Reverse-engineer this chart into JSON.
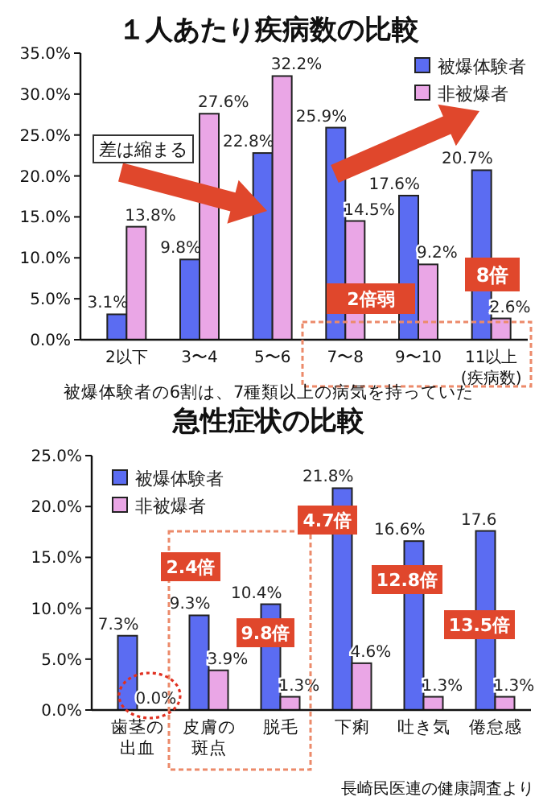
{
  "chart_data": [
    {
      "type": "bar",
      "title": "１人あたり疾病数の比較",
      "categories": [
        "2以下",
        "3〜4",
        "5〜6",
        "7〜8",
        "9〜10",
        "11以上\n(疾病数)"
      ],
      "series": [
        {
          "name": "被爆体験者",
          "color": "#5b6cf2",
          "values": [
            3.1,
            9.8,
            22.8,
            25.9,
            17.6,
            20.7
          ],
          "value_labels": [
            "3.1%",
            "9.8%",
            "22.8%",
            "25.9%",
            "17.6%",
            "20.7%"
          ]
        },
        {
          "name": "非被爆者",
          "color": "#eaa6e6",
          "values": [
            13.8,
            27.6,
            32.2,
            14.5,
            9.2,
            2.6
          ],
          "value_labels": [
            "13.8%",
            "27.6%",
            "32.2%",
            "14.5%",
            "9.2%",
            "2.6%"
          ]
        }
      ],
      "ylim": [
        0,
        35
      ],
      "yticks": [
        {
          "value": 0,
          "label": "0.0%"
        },
        {
          "value": 5,
          "label": "5.0%"
        },
        {
          "value": 10,
          "label": "10.0%"
        },
        {
          "value": 15,
          "label": "15.0%"
        },
        {
          "value": 20,
          "label": "20.0%"
        },
        {
          "value": 25,
          "label": "25.0%"
        },
        {
          "value": 30,
          "label": "30.0%"
        },
        {
          "value": 35,
          "label": "35.0%"
        }
      ],
      "legend": "top right",
      "grid": false,
      "annotations": [
        "差は縮まる",
        "2倍弱",
        "8倍",
        "被爆体験者の6割は、7種類以上の病気を持っていた"
      ]
    },
    {
      "type": "bar",
      "title": "急性症状の比較",
      "categories": [
        "歯茎の出血",
        "皮膚の斑点",
        "脱毛",
        "下痢",
        "吐き気",
        "倦怠感"
      ],
      "series": [
        {
          "name": "被爆体験者",
          "color": "#5b6cf2",
          "values": [
            7.3,
            9.3,
            10.4,
            21.8,
            16.6,
            17.6
          ],
          "value_labels": [
            "7.3%",
            "9.3%",
            "10.4%",
            "21.8%",
            "16.6%",
            "17.6"
          ]
        },
        {
          "name": "非被爆者",
          "color": "#eaa6e6",
          "values": [
            0.0,
            3.9,
            1.3,
            4.6,
            1.3,
            1.3
          ],
          "value_labels": [
            "0.0%",
            "3.9%",
            "1.3%",
            "4.6%",
            "1.3%",
            "1.3%"
          ]
        }
      ],
      "ylim": [
        0,
        25
      ],
      "yticks": [
        {
          "value": 0,
          "label": "0.0%"
        },
        {
          "value": 5,
          "label": "5.0%"
        },
        {
          "value": 10,
          "label": "10.0%"
        },
        {
          "value": 15,
          "label": "15.0%"
        },
        {
          "value": 20,
          "label": "20.0%"
        },
        {
          "value": 25,
          "label": "25.0%"
        }
      ],
      "legend": "top left",
      "grid": false,
      "annotations": [
        "2.4倍",
        "9.8倍",
        "4.7倍",
        "12.8倍",
        "13.5倍",
        "長崎民医連の健康調査より"
      ]
    }
  ]
}
